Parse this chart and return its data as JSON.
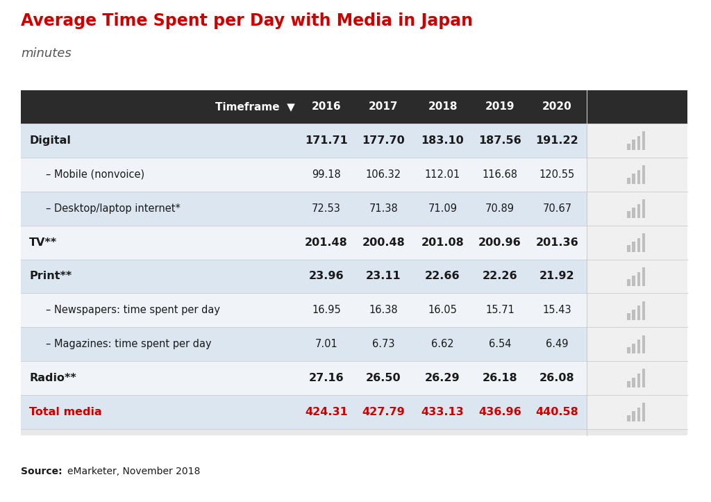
{
  "title": "Average Time Spent per Day with Media in Japan",
  "subtitle": "minutes",
  "source_bold": "Source:",
  "source_normal": " eMarketer, November 2018",
  "title_color": "#cc0000",
  "subtitle_color": "#555555",
  "header": [
    "Timeframe",
    "2016",
    "2017",
    "2018",
    "2019",
    "2020"
  ],
  "rows": [
    {
      "label": "Digital",
      "bold": true,
      "indent": false,
      "values": [
        "171.71",
        "177.70",
        "183.10",
        "187.56",
        "191.22"
      ],
      "row_color": "#dce6f0",
      "text_color": "#1a1a1a"
    },
    {
      "label": "– Mobile (nonvoice)",
      "bold": false,
      "indent": true,
      "values": [
        "99.18",
        "106.32",
        "112.01",
        "116.68",
        "120.55"
      ],
      "row_color": "#f0f4f8",
      "text_color": "#1a1a1a"
    },
    {
      "label": "– Desktop/laptop internet*",
      "bold": false,
      "indent": true,
      "values": [
        "72.53",
        "71.38",
        "71.09",
        "70.89",
        "70.67"
      ],
      "row_color": "#dce6f0",
      "text_color": "#1a1a1a"
    },
    {
      "label": "TV**",
      "bold": true,
      "indent": false,
      "values": [
        "201.48",
        "200.48",
        "201.08",
        "200.96",
        "201.36"
      ],
      "row_color": "#f0f4f8",
      "text_color": "#1a1a1a"
    },
    {
      "label": "Print**",
      "bold": true,
      "indent": false,
      "values": [
        "23.96",
        "23.11",
        "22.66",
        "22.26",
        "21.92"
      ],
      "row_color": "#dce6f0",
      "text_color": "#1a1a1a"
    },
    {
      "label": "– Newspapers: time spent per day",
      "bold": false,
      "indent": true,
      "values": [
        "16.95",
        "16.38",
        "16.05",
        "15.71",
        "15.43"
      ],
      "row_color": "#f0f4f8",
      "text_color": "#1a1a1a"
    },
    {
      "label": "– Magazines: time spent per day",
      "bold": false,
      "indent": true,
      "values": [
        "7.01",
        "6.73",
        "6.62",
        "6.54",
        "6.49"
      ],
      "row_color": "#dce6f0",
      "text_color": "#1a1a1a"
    },
    {
      "label": "Radio**",
      "bold": true,
      "indent": false,
      "values": [
        "27.16",
        "26.50",
        "26.29",
        "26.18",
        "26.08"
      ],
      "row_color": "#f0f4f8",
      "text_color": "#1a1a1a"
    },
    {
      "label": "Total media",
      "bold": true,
      "indent": false,
      "values": [
        "424.31",
        "427.79",
        "433.13",
        "436.96",
        "440.58"
      ],
      "row_color": "#dce6f0",
      "text_color": "#cc0000"
    }
  ],
  "header_bg": "#2b2b2b",
  "header_text": "#ffffff",
  "table_outer_bg": "#e8e8e8",
  "outer_bg": "#ffffff",
  "icon_col_bg": "#e8e8e8"
}
